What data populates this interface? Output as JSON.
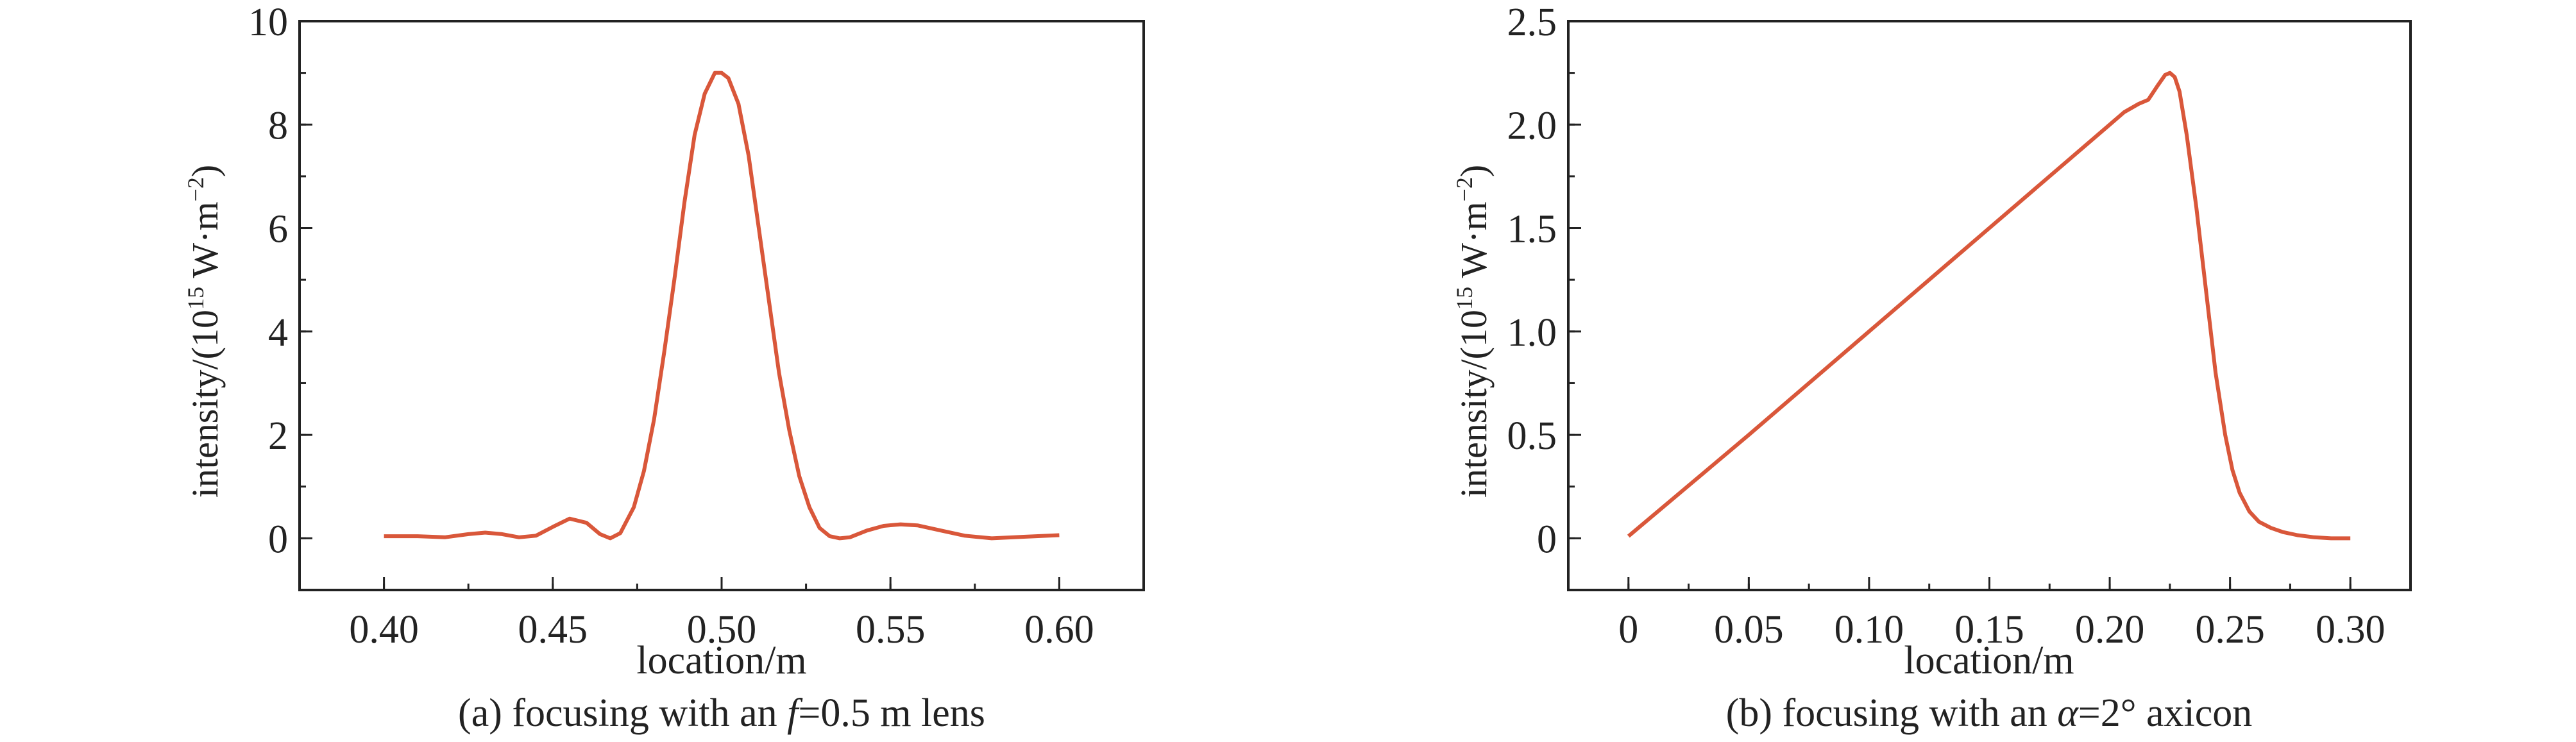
{
  "line_color": "#d9573a",
  "chart_data": [
    {
      "type": "line",
      "caption": "(a) focusing with an f=0.5 m lens",
      "caption_parts": {
        "pre": "(a) focusing with an ",
        "sym": "f",
        "post": "=0.5 m lens"
      },
      "xlabel": "location/m",
      "ylabel": {
        "pre": "intensity/(10",
        "sup1": "15",
        "mid": " W·m",
        "sup2": "−2",
        "post": ")"
      },
      "xlim": [
        0.375,
        0.625
      ],
      "ylim": [
        -1,
        10
      ],
      "xticks": [
        0.4,
        0.45,
        0.5,
        0.55,
        0.6
      ],
      "xtick_labels": [
        "0.40",
        "0.45",
        "0.50",
        "0.55",
        "0.60"
      ],
      "yticks": [
        0,
        2,
        4,
        6,
        8,
        10
      ],
      "ytick_labels": [
        "0",
        "2",
        "4",
        "6",
        "8",
        "10"
      ],
      "x_minor_step": 0.025,
      "y_minor_step": 1,
      "grid": false,
      "x": [
        0.4,
        0.41,
        0.418,
        0.425,
        0.43,
        0.435,
        0.44,
        0.445,
        0.45,
        0.455,
        0.46,
        0.464,
        0.467,
        0.47,
        0.474,
        0.477,
        0.48,
        0.483,
        0.486,
        0.489,
        0.492,
        0.495,
        0.498,
        0.5,
        0.502,
        0.505,
        0.508,
        0.511,
        0.514,
        0.517,
        0.52,
        0.523,
        0.526,
        0.529,
        0.532,
        0.535,
        0.538,
        0.543,
        0.548,
        0.553,
        0.558,
        0.565,
        0.572,
        0.58,
        0.59,
        0.6
      ],
      "y": [
        0.04,
        0.04,
        0.02,
        0.08,
        0.11,
        0.08,
        0.02,
        0.05,
        0.22,
        0.38,
        0.3,
        0.08,
        0.0,
        0.1,
        0.6,
        1.3,
        2.3,
        3.6,
        5.0,
        6.5,
        7.8,
        8.6,
        9.0,
        9.0,
        8.9,
        8.4,
        7.4,
        6.0,
        4.6,
        3.2,
        2.1,
        1.2,
        0.6,
        0.2,
        0.04,
        0.0,
        0.02,
        0.15,
        0.24,
        0.27,
        0.25,
        0.15,
        0.05,
        0.0,
        0.03,
        0.06
      ]
    },
    {
      "type": "line",
      "caption": "(b) focusing with an α=2° axicon",
      "caption_parts": {
        "pre": "(b) focusing with an ",
        "sym": "α",
        "post": "=2° axicon"
      },
      "xlabel": "location/m",
      "ylabel": {
        "pre": "intensity/(10",
        "sup1": "15",
        "mid": " W·m",
        "sup2": "−2",
        "post": ")"
      },
      "xlim": [
        -0.025,
        0.325
      ],
      "ylim": [
        -0.25,
        2.5
      ],
      "xticks": [
        0,
        0.05,
        0.1,
        0.15,
        0.2,
        0.25,
        0.3
      ],
      "xtick_labels": [
        "0",
        "0.05",
        "0.10",
        "0.15",
        "0.20",
        "0.25",
        "0.30"
      ],
      "yticks": [
        0,
        0.5,
        1.0,
        1.5,
        2.0,
        2.5
      ],
      "ytick_labels": [
        "0",
        "0.5",
        "1.0",
        "1.5",
        "2.0",
        "2.5"
      ],
      "x_minor_step": 0.025,
      "y_minor_step": 0.25,
      "grid": false,
      "x": [
        0.0,
        0.05,
        0.1,
        0.15,
        0.2,
        0.206,
        0.212,
        0.216,
        0.22,
        0.223,
        0.225,
        0.227,
        0.229,
        0.232,
        0.236,
        0.24,
        0.244,
        0.248,
        0.251,
        0.254,
        0.258,
        0.262,
        0.267,
        0.272,
        0.278,
        0.285,
        0.292,
        0.3
      ],
      "y": [
        0.01,
        0.5,
        1.0,
        1.5,
        2.0,
        2.06,
        2.1,
        2.12,
        2.19,
        2.24,
        2.25,
        2.23,
        2.16,
        1.95,
        1.6,
        1.2,
        0.8,
        0.5,
        0.33,
        0.22,
        0.13,
        0.08,
        0.05,
        0.03,
        0.015,
        0.005,
        0.0,
        0.0
      ]
    }
  ]
}
